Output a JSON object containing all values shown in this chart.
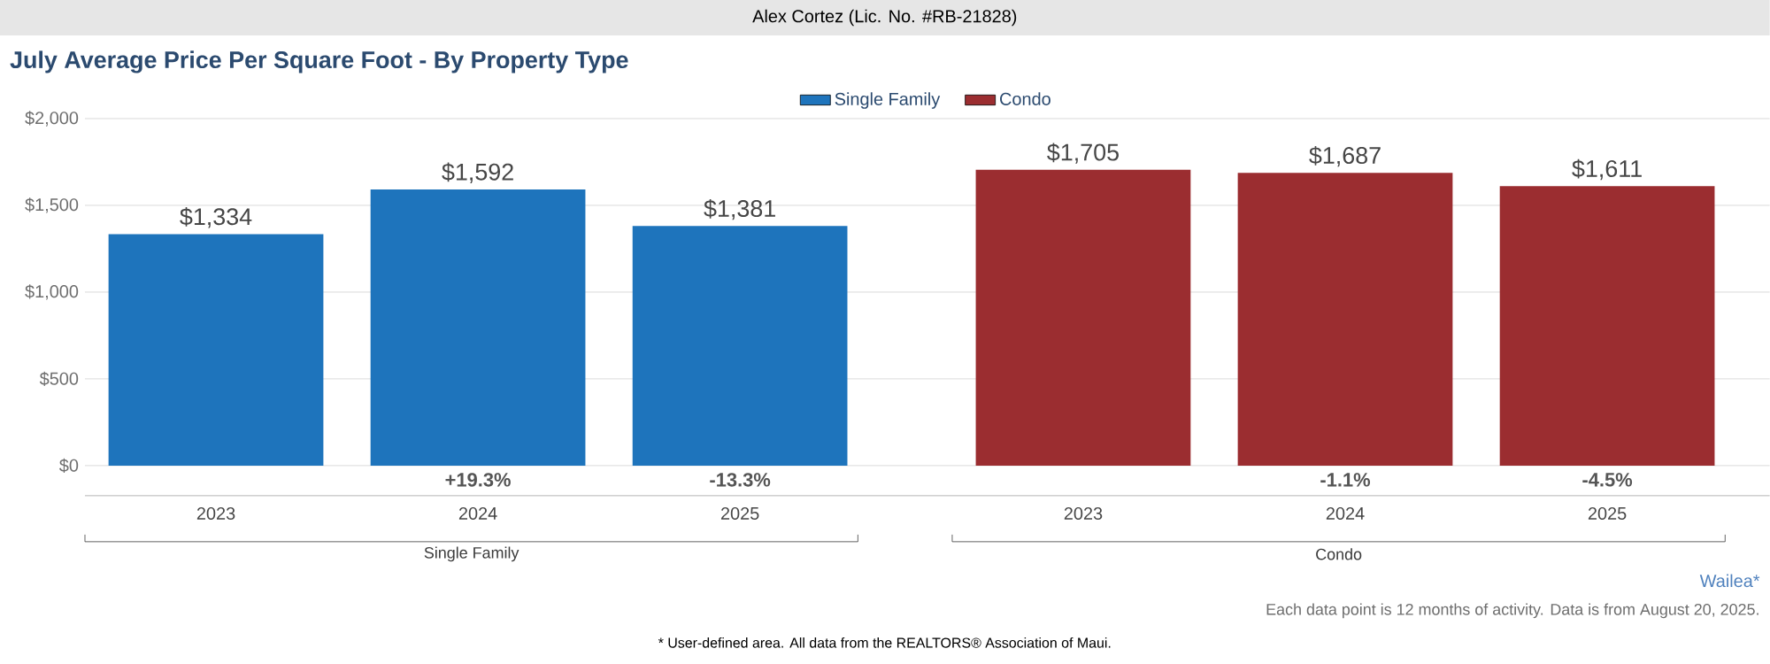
{
  "chart_data": {
    "type": "bar",
    "title": "July Average Price Per Square Foot - By Property Type",
    "categories": [
      "2023",
      "2024",
      "2025",
      "2023",
      "2024",
      "2025"
    ],
    "series": [
      {
        "name": "Single Family",
        "color": "#1e74bc",
        "values": [
          1334,
          1592,
          1381,
          null,
          null,
          null
        ],
        "value_labels": [
          "$1,334",
          "$1,592",
          "$1,381",
          null,
          null,
          null
        ]
      },
      {
        "name": "Condo",
        "color": "#9b2d30",
        "values": [
          null,
          null,
          null,
          1705,
          1687,
          1611
        ],
        "value_labels": [
          null,
          null,
          null,
          "$1,705",
          "$1,687",
          "$1,611"
        ]
      }
    ],
    "ylim": [
      0,
      2000
    ],
    "yticks": [
      {
        "value": 0,
        "label": "$0"
      },
      {
        "value": 500,
        "label": "$500"
      },
      {
        "value": 1000,
        "label": "$1,000"
      },
      {
        "value": 1500,
        "label": "$1,500"
      },
      {
        "value": 2000,
        "label": "$2,000"
      }
    ],
    "grid": "y",
    "legend": "top",
    "annotations": [
      "Alex Cortez (Lic. No. #RB-21828)",
      "+19.3%",
      "-13.3%",
      "-1.1%",
      "-4.5%",
      "Single Family",
      "Condo",
      "Wailea*",
      "Each data point is 12 months of activity. Data is from August 20, 2025.",
      "* User-defined area. All data from the REALTORS® Association of Maui."
    ]
  }
}
